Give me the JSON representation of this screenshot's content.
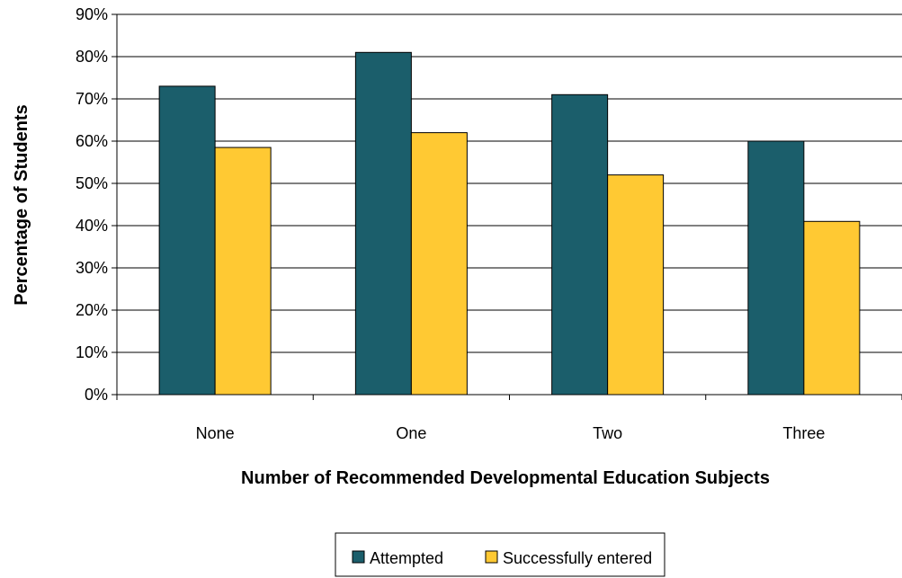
{
  "chart_data": {
    "type": "bar",
    "categories": [
      "None",
      "One",
      "Two",
      "Three"
    ],
    "series": [
      {
        "name": "Attempted",
        "values": [
          73,
          81,
          71,
          60
        ],
        "color": "#1b5e6b"
      },
      {
        "name": "Successfully entered",
        "values": [
          58.5,
          62,
          52,
          41
        ],
        "color": "#ffc933"
      }
    ],
    "xlabel": "Number of Recommended Developmental Education Subjects",
    "ylabel": "Percentage of Students",
    "ylim": [
      0,
      90
    ],
    "yticks": [
      0,
      10,
      20,
      30,
      40,
      50,
      60,
      70,
      80,
      90
    ],
    "ytick_labels": [
      "0%",
      "10%",
      "20%",
      "30%",
      "40%",
      "50%",
      "60%",
      "70%",
      "80%",
      "90%"
    ],
    "grid": true,
    "legend_position": "bottom"
  }
}
